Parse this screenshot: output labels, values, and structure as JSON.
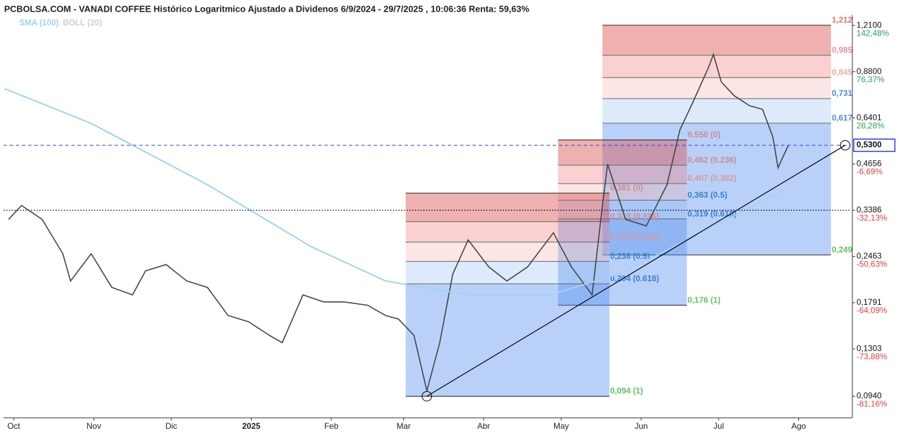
{
  "chart_data": {
    "type": "line",
    "title": "PCBOLSA.COM - VANADI COFFEE Histórico Logaritmico Ajustado a Dividenos 6/9/2024 - 29/7/2025 , 10:06:36 Renta: 59,63%",
    "legend": [
      {
        "name": "SMA (100)",
        "color": "#9fd3f5"
      },
      {
        "name": "BOLL (20)",
        "color": "#d0d0d0"
      }
    ],
    "log_scale": true,
    "xlim": [
      21,
      349
    ],
    "xticks": [
      {
        "value": 25,
        "label": "Oct"
      },
      {
        "value": 56,
        "label": "Nov"
      },
      {
        "value": 86,
        "label": "Dic"
      },
      {
        "value": 117,
        "label": "2025"
      },
      {
        "value": 148,
        "label": "Feb"
      },
      {
        "value": 176,
        "label": "Mar"
      },
      {
        "value": 207,
        "label": "Abr"
      },
      {
        "value": 237,
        "label": "May"
      },
      {
        "value": 268,
        "label": "Jun"
      },
      {
        "value": 298,
        "label": "Jul"
      },
      {
        "value": 329,
        "label": "Ago"
      }
    ],
    "ylim": [
      0.081,
      1.3
    ],
    "yticks": [
      {
        "value": 1.21,
        "label": "1,2100"
      },
      {
        "value": 0.88,
        "label": "0,8800"
      },
      {
        "value": 0.6401,
        "label": "0,6401"
      },
      {
        "value": 0.4656,
        "label": "0,4656"
      },
      {
        "value": 0.3386,
        "label": "0,3386"
      },
      {
        "value": 0.2463,
        "label": "0,2463"
      },
      {
        "value": 0.1791,
        "label": "0,1791"
      },
      {
        "value": 0.1303,
        "label": "0,1303"
      },
      {
        "value": 0.094,
        "label": "0,0940"
      }
    ],
    "ytick_notes": [
      "142,48%",
      "76,37%",
      "28,28%",
      "-6,69%",
      "-32,13%",
      "-50,63%",
      "-64,09%",
      "-73,88%",
      "-81,16%"
    ],
    "last_value": {
      "value": 0.53,
      "label": "0,5300"
    },
    "reference_line": 0.3386,
    "trend_line": {
      "x": [
        185,
        347
      ],
      "values": [
        0.094,
        0.53
      ]
    },
    "series": [
      {
        "name": "Precio",
        "color": "#444444",
        "x": [
          23,
          28,
          36,
          44,
          47,
          55,
          63,
          71,
          76,
          84,
          92,
          100,
          108,
          116,
          124,
          129,
          137,
          145,
          153,
          162,
          169,
          174,
          180,
          185,
          190,
          195,
          201,
          209,
          216,
          224,
          234,
          241,
          249,
          253,
          255,
          262,
          270,
          278,
          283,
          288,
          294,
          296,
          299,
          304,
          310,
          315,
          319,
          321,
          325
        ],
        "values": [
          0.318,
          0.35,
          0.318,
          0.251,
          0.208,
          0.251,
          0.199,
          0.189,
          0.223,
          0.233,
          0.208,
          0.199,
          0.164,
          0.157,
          0.143,
          0.136,
          0.189,
          0.18,
          0.18,
          0.176,
          0.164,
          0.16,
          0.143,
          0.0975,
          0.136,
          0.218,
          0.276,
          0.229,
          0.208,
          0.229,
          0.29,
          0.229,
          0.189,
          0.35,
          0.465,
          0.318,
          0.304,
          0.404,
          0.589,
          0.712,
          0.903,
          0.992,
          0.821,
          0.746,
          0.696,
          0.679,
          0.562,
          0.454,
          0.53
        ]
      },
      {
        "name": "SMA (100)",
        "color": "#9fd3f5",
        "x": [
          21.5,
          55,
          100,
          140,
          169,
          201,
          233,
          259,
          286,
          323
        ],
        "values": [
          0.783,
          0.616,
          0.404,
          0.264,
          0.208,
          0.189,
          0.189,
          0.218,
          0.276,
          0.39
        ]
      }
    ],
    "fibonacci": [
      {
        "x_range": [
          253,
          341.5
        ],
        "levels": [
          {
            "value": 1.212,
            "label": "1,212",
            "color": "#e57373"
          },
          {
            "value": 0.985,
            "label": "0,985",
            "color": "#f08f8f"
          },
          {
            "value": 0.845,
            "label": "0,845",
            "color": "#f4a8a8"
          },
          {
            "value": 0.731,
            "label": "0,731",
            "color": "#4a8fdb"
          },
          {
            "value": 0.617,
            "label": "0,617",
            "color": "#4a8fdb"
          },
          {
            "value": 0.249,
            "label": "0,249",
            "color": "#5cc55c"
          }
        ]
      },
      {
        "x_range": [
          235.8,
          285.7
        ],
        "levels": [
          {
            "value": 0.55,
            "label": "0,550 (0)",
            "color": "#d48a8a"
          },
          {
            "value": 0.462,
            "label": "0,462 (0.236)",
            "color": "#d48a8a"
          },
          {
            "value": 0.407,
            "label": "0,407 (0.382)",
            "color": "#d49a9a"
          },
          {
            "value": 0.363,
            "label": "0,363 (0.5)",
            "color": "#3a7fd0"
          },
          {
            "value": 0.319,
            "label": "0,319 (0.618)",
            "color": "#3a7fd0"
          },
          {
            "value": 0.176,
            "label": "0,176 (1)",
            "color": "#5cc55c"
          }
        ]
      },
      {
        "x_range": [
          176.8,
          255.7
        ],
        "levels": [
          {
            "value": 0.381,
            "label": "0,381 (0)",
            "color": "#d48a8a"
          },
          {
            "value": 0.313,
            "label": "0,313 (0.236)",
            "color": "#d48a8a"
          },
          {
            "value": 0.272,
            "label": "0,272 (0.382)",
            "color": "#d49a9a"
          },
          {
            "value": 0.238,
            "label": "0,238 (0.5)",
            "color": "#3a7fd0"
          },
          {
            "value": 0.204,
            "label": "0,204 (0.618)",
            "color": "#3a7fd0"
          },
          {
            "value": 0.094,
            "label": "0,094 (1)",
            "color": "#5cc55c"
          }
        ]
      }
    ]
  }
}
